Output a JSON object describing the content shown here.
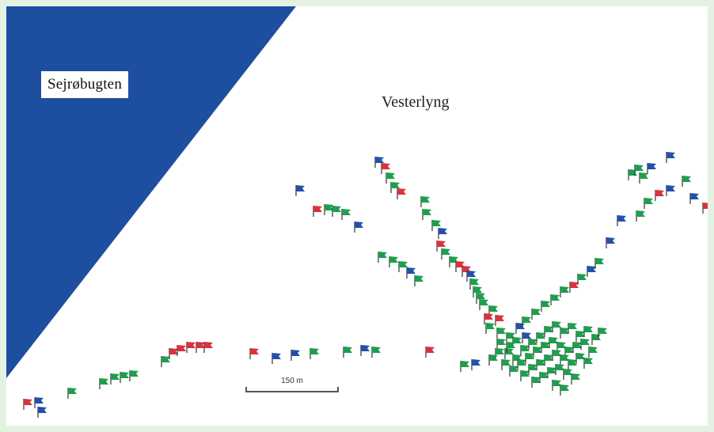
{
  "map": {
    "sea_label": "Sejrøbugten",
    "area_label": "Vesterlyng",
    "scale_label": "150 m",
    "colors": {
      "sea": "#1e4ea0",
      "red": "#d8333d",
      "green": "#1f9e4e",
      "blue": "#2451a8",
      "frame": "#e4f2e2"
    }
  }
}
